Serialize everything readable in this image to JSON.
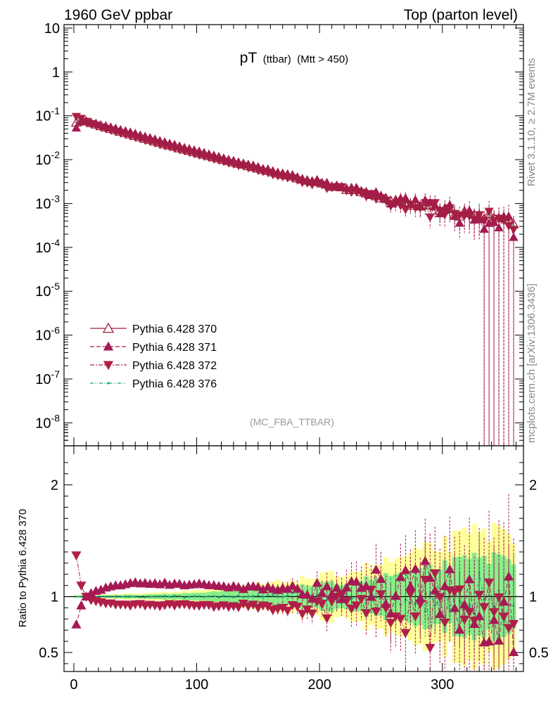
{
  "header": {
    "left": "1960 GeV ppbar",
    "right": "Top (parton level)"
  },
  "side": {
    "rivet": "Rivet 3.1.10, ≥ 2.7M events",
    "mcplots": "mcplots.cern.ch [arXiv:1306.3436]"
  },
  "chart_data": {
    "type": "line",
    "title": {
      "main": "pT",
      "sub": "(ttbar)",
      "cut": "(Mtt > 450)"
    },
    "analysis": "(MC_FBA_TTBAR)",
    "xlim": [
      -8,
      366
    ],
    "ylim": [
      3e-09,
      12
    ],
    "yscale": "log",
    "ratio_ylabel": "Ratio to Pythia 6.428 370",
    "ratio_ylim": [
      0.33,
      2.35
    ],
    "xticks": [
      "0",
      "100",
      "200",
      "300"
    ],
    "yticks": [
      "10",
      "1",
      "10^-1",
      "10^-2",
      "10^-3",
      "10^-4",
      "10^-5",
      "10^-6",
      "10^-7",
      "10^-8"
    ],
    "ratio_yticks": [
      "0.5",
      "1",
      "2"
    ],
    "legend_position": "bottom-left",
    "colors": {
      "s370": "#a0203c",
      "s371": "#a51a55",
      "s372": "#b01f48",
      "s376": "#1f9f86",
      "band_yellow": "#ffff99",
      "band_green": "#88ee88"
    },
    "series": [
      {
        "name": "Pythia 6.428 370",
        "marker": "open-triangle-up",
        "line": "solid"
      },
      {
        "name": "Pythia 6.428 371",
        "marker": "filled-triangle-up",
        "line": "dashed"
      },
      {
        "name": "Pythia 6.428 372",
        "marker": "filled-triangle-down",
        "line": "dashdot"
      },
      {
        "name": "Pythia 6.428 376",
        "marker": "small-dot",
        "line": "dashdotdot"
      }
    ],
    "spectrum": {
      "x_centers_start": 2,
      "bin_width": 4,
      "n_bins": 90,
      "peak_value": 0.08,
      "slope_per_unit": 0.0193,
      "low_edge_value": 0.05
    },
    "ratios": {
      "s371_low": [
        0.75,
        0.92,
        1.0,
        1.03,
        1.05,
        1.06,
        1.08,
        1.09,
        1.1,
        1.1,
        1.11,
        1.12
      ],
      "s372_low": [
        1.37,
        1.1,
        1.0,
        0.97,
        0.96,
        0.95,
        0.94,
        0.94,
        0.93,
        0.93,
        0.93,
        0.92
      ],
      "band_widths": [
        0.01,
        0.03,
        0.06,
        0.12,
        0.2,
        0.35,
        0.55
      ]
    }
  }
}
